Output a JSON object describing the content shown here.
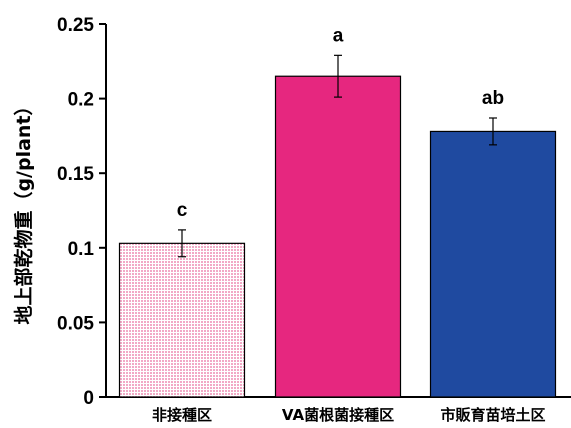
{
  "chart_data": {
    "type": "bar",
    "categories": [
      "非接種区",
      "VA菌根菌接種区",
      "市販育苗培土区"
    ],
    "values": [
      0.103,
      0.215,
      0.178
    ],
    "errors": [
      0.009,
      0.014,
      0.009
    ],
    "significance": [
      "c",
      "a",
      "ab"
    ],
    "bar_colors": [
      "#f6c6d8",
      "#e6277f",
      "#1f4aa0"
    ],
    "bar_patterns": [
      "dotted-pink",
      "solid",
      "solid"
    ],
    "title": "",
    "xlabel": "",
    "ylabel": "地上部乾物重（g/plant）",
    "ylim": [
      0,
      0.25
    ],
    "yticks": [
      0,
      0.05,
      0.1,
      0.15,
      0.2,
      0.25
    ],
    "ytick_labels": [
      "0",
      "0.05",
      "0.1",
      "0.15",
      "0.2",
      "0.25"
    ],
    "grid": false,
    "legend": "none"
  }
}
